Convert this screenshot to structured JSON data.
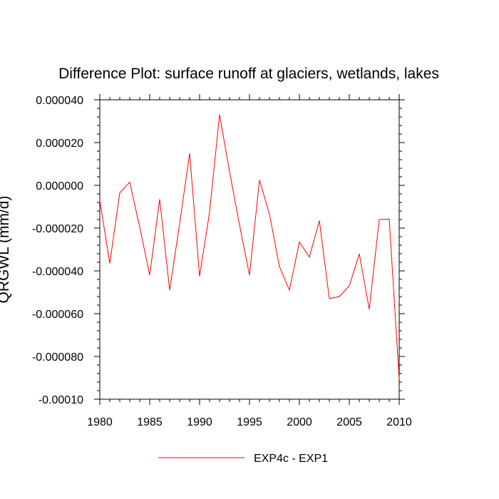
{
  "chart_data": {
    "type": "line",
    "title": "Difference Plot: surface runoff at glaciers, wetlands, lakes",
    "ylabel": "QRGWL  (mm/d)",
    "xlabel": "",
    "xlim": [
      1980,
      2010
    ],
    "ylim": [
      -0.0001,
      4e-05
    ],
    "x_ticks": [
      1980,
      1985,
      1990,
      1995,
      2000,
      2005,
      2010
    ],
    "x_tick_labels": [
      "1980",
      "1985",
      "1990",
      "1995",
      "2000",
      "2005",
      "2010"
    ],
    "y_ticks": [
      -0.0001,
      -8e-05,
      -6e-05,
      -4e-05,
      -2e-05,
      0,
      2e-05,
      4e-05
    ],
    "y_tick_labels": [
      "-0.00010",
      "-0.000080",
      "-0.000060",
      "-0.000040",
      "-0.000020",
      "0.000000",
      "0.000020",
      "0.000040"
    ],
    "grid": false,
    "legend_position": "bottom-center",
    "series": [
      {
        "name": "EXP4c - EXP1",
        "color": "#ff0000",
        "x": [
          1980,
          1981,
          1982,
          1983,
          1984,
          1985,
          1986,
          1987,
          1988,
          1989,
          1990,
          1991,
          1992,
          1993,
          1994,
          1995,
          1996,
          1997,
          1998,
          1999,
          2000,
          2001,
          2002,
          2003,
          2004,
          2005,
          2006,
          2007,
          2008,
          2009,
          2010
        ],
        "y": [
          -7e-06,
          -3.65e-05,
          -3.5e-06,
          1.5e-06,
          -1.95e-05,
          -4.2e-05,
          -6.5e-06,
          -4.9e-05,
          -1.8e-05,
          1.5e-05,
          -4.25e-05,
          -1.25e-05,
          3.3e-05,
          6.5e-06,
          -1.85e-05,
          -4.2e-05,
          2.5e-06,
          -1.35e-05,
          -3.8e-05,
          -4.9e-05,
          -2.65e-05,
          -3.35e-05,
          -1.65e-05,
          -5.3e-05,
          -5.2e-05,
          -4.7e-05,
          -3.2e-05,
          -5.8e-05,
          -1.6e-05,
          -1.58e-05,
          -9.05e-05
        ]
      }
    ]
  }
}
